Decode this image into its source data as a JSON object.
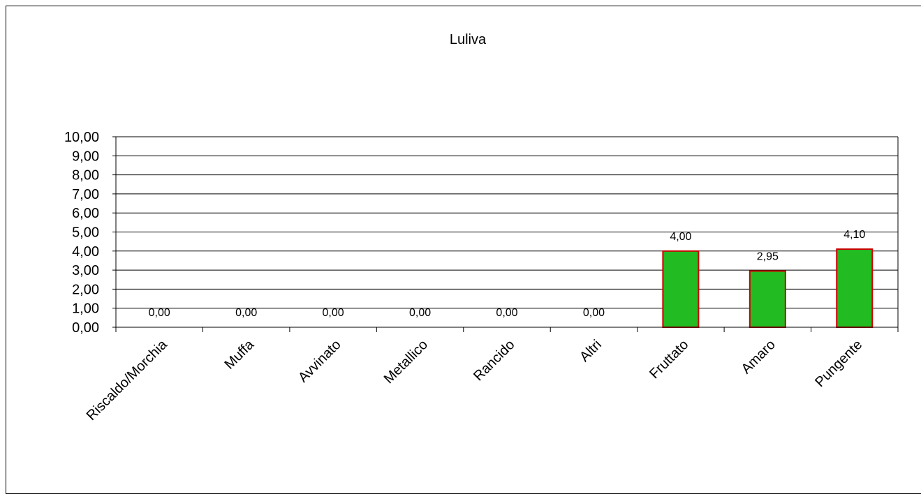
{
  "chart_data": {
    "type": "bar",
    "title": "Luliva",
    "xlabel": "",
    "ylabel": "",
    "categories": [
      "Riscaldo/Morchia",
      "Muffa",
      "Avvinato",
      "Metallico",
      "Rancido",
      "Altri",
      "Fruttato",
      "Amaro",
      "Pungente"
    ],
    "values": [
      0,
      0,
      0,
      0,
      0,
      0,
      4,
      2.95,
      4.1
    ],
    "data_labels": [
      "0,00",
      "0,00",
      "0,00",
      "0,00",
      "0,00",
      "0,00",
      "4,00",
      "2,95",
      "4,10"
    ],
    "ylim": [
      0,
      10
    ],
    "yticks": [
      0,
      1,
      2,
      3,
      4,
      5,
      6,
      7,
      8,
      9,
      10
    ],
    "ytick_labels": [
      "0,00",
      "1,00",
      "2,00",
      "3,00",
      "4,00",
      "5,00",
      "6,00",
      "7,00",
      "8,00",
      "9,00",
      "10,00"
    ],
    "grid": true,
    "legend": "none",
    "colors": {
      "bar_fill": "#22bb22",
      "bar_stroke": "#cc0000",
      "axis": "#000000",
      "grid": "#000000"
    }
  }
}
